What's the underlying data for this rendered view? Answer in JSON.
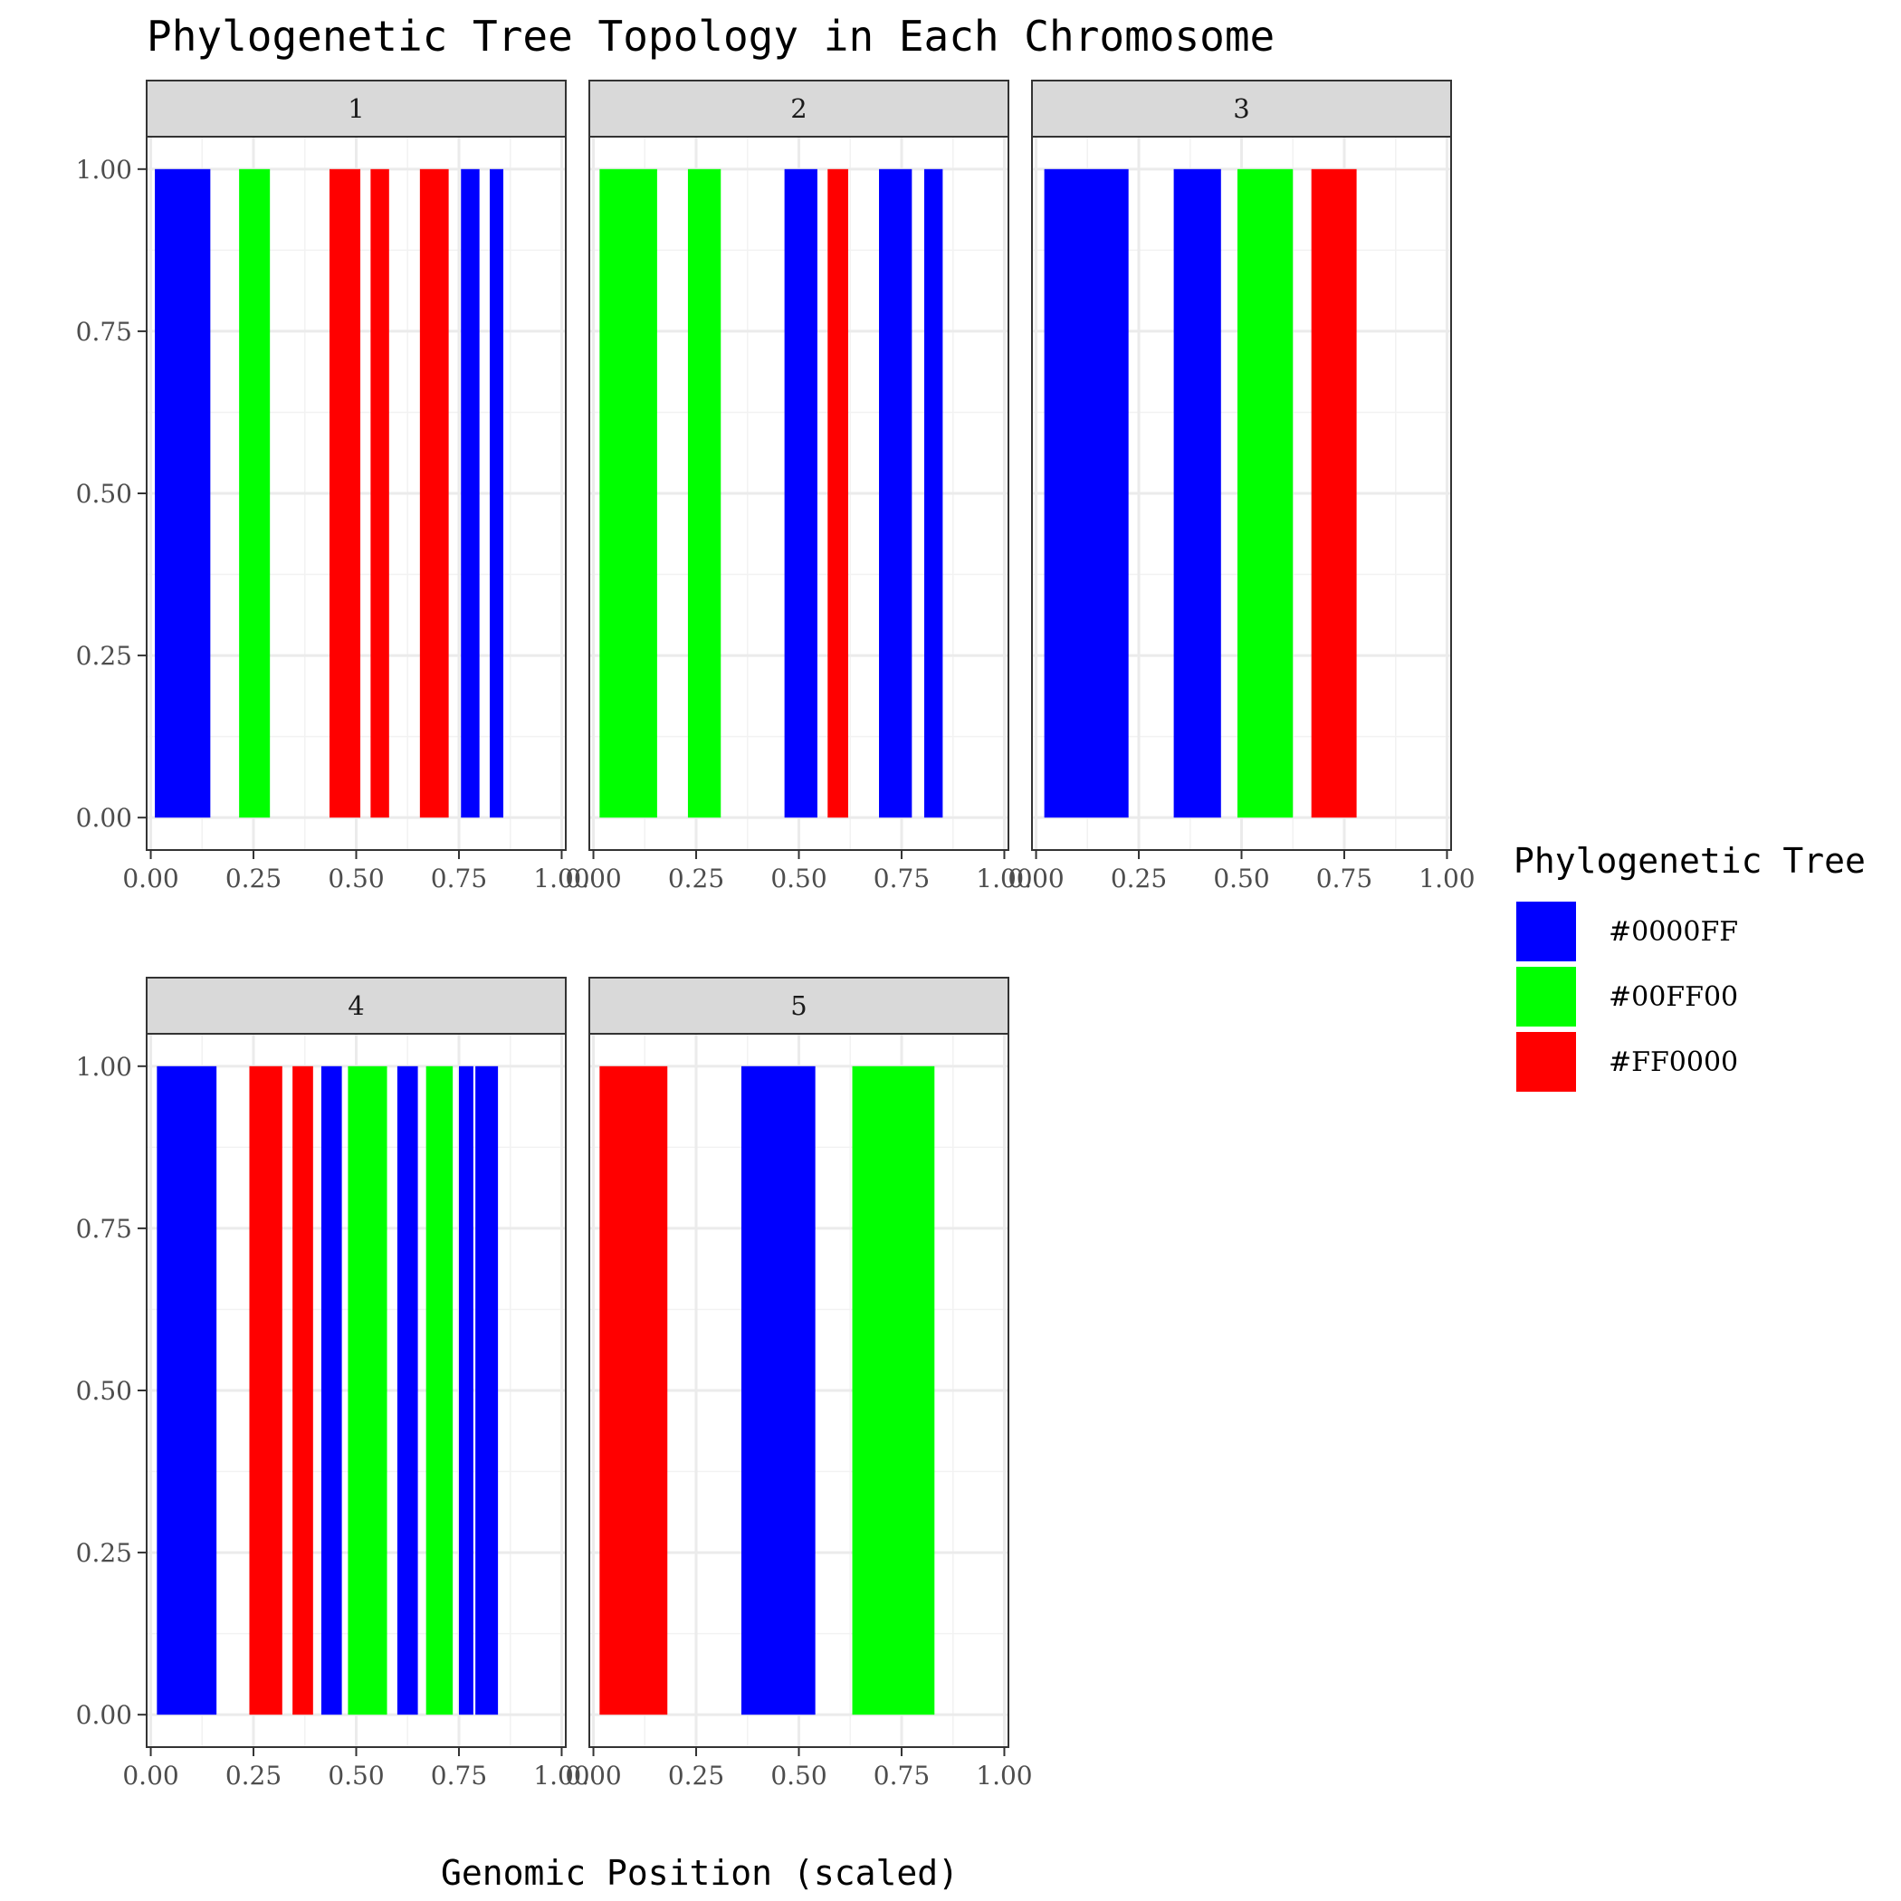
{
  "chart_data": {
    "type": "bar",
    "title": "Phylogenetic Tree Topology in Each Chromosome",
    "xlabel": "Genomic Position (scaled)",
    "ylabel": "",
    "xlim": [
      0,
      1
    ],
    "ylim": [
      0,
      1
    ],
    "x_ticks": [
      "0.00",
      "0.25",
      "0.50",
      "0.75",
      "1.00"
    ],
    "y_ticks": [
      "0.00",
      "0.25",
      "0.50",
      "0.75",
      "1.00"
    ],
    "grid": true,
    "legend": {
      "title": "Phylogenetic Tree",
      "position": "right",
      "entries": [
        {
          "label": "#0000FF",
          "color": "#0000FF"
        },
        {
          "label": "#00FF00",
          "color": "#00FF00"
        },
        {
          "label": "#FF0000",
          "color": "#FF0000"
        }
      ]
    },
    "panels": [
      {
        "label": "1",
        "segments": [
          {
            "start": 0.01,
            "end": 0.145,
            "height": 1,
            "color": "#0000FF"
          },
          {
            "start": 0.215,
            "end": 0.29,
            "height": 1,
            "color": "#00FF00"
          },
          {
            "start": 0.435,
            "end": 0.51,
            "height": 1,
            "color": "#FF0000"
          },
          {
            "start": 0.535,
            "end": 0.58,
            "height": 1,
            "color": "#FF0000"
          },
          {
            "start": 0.655,
            "end": 0.725,
            "height": 1,
            "color": "#FF0000"
          },
          {
            "start": 0.755,
            "end": 0.8,
            "height": 1,
            "color": "#0000FF"
          },
          {
            "start": 0.825,
            "end": 0.858,
            "height": 1,
            "color": "#0000FF"
          }
        ]
      },
      {
        "label": "2",
        "segments": [
          {
            "start": 0.015,
            "end": 0.155,
            "height": 1,
            "color": "#00FF00"
          },
          {
            "start": 0.23,
            "end": 0.31,
            "height": 1,
            "color": "#00FF00"
          },
          {
            "start": 0.465,
            "end": 0.545,
            "height": 1,
            "color": "#0000FF"
          },
          {
            "start": 0.57,
            "end": 0.62,
            "height": 1,
            "color": "#FF0000"
          },
          {
            "start": 0.695,
            "end": 0.775,
            "height": 1,
            "color": "#0000FF"
          },
          {
            "start": 0.805,
            "end": 0.85,
            "height": 1,
            "color": "#0000FF"
          }
        ]
      },
      {
        "label": "3",
        "segments": [
          {
            "start": 0.02,
            "end": 0.225,
            "height": 1,
            "color": "#0000FF"
          },
          {
            "start": 0.335,
            "end": 0.45,
            "height": 1,
            "color": "#0000FF"
          },
          {
            "start": 0.49,
            "end": 0.625,
            "height": 1,
            "color": "#00FF00"
          },
          {
            "start": 0.67,
            "end": 0.78,
            "height": 1,
            "color": "#FF0000"
          }
        ]
      },
      {
        "label": "4",
        "segments": [
          {
            "start": 0.015,
            "end": 0.16,
            "height": 1,
            "color": "#0000FF"
          },
          {
            "start": 0.24,
            "end": 0.32,
            "height": 1,
            "color": "#FF0000"
          },
          {
            "start": 0.345,
            "end": 0.395,
            "height": 1,
            "color": "#FF0000"
          },
          {
            "start": 0.415,
            "end": 0.465,
            "height": 1,
            "color": "#0000FF"
          },
          {
            "start": 0.48,
            "end": 0.575,
            "height": 1,
            "color": "#00FF00"
          },
          {
            "start": 0.6,
            "end": 0.65,
            "height": 1,
            "color": "#0000FF"
          },
          {
            "start": 0.67,
            "end": 0.735,
            "height": 1,
            "color": "#00FF00"
          },
          {
            "start": 0.75,
            "end": 0.785,
            "height": 1,
            "color": "#0000FF"
          },
          {
            "start": 0.79,
            "end": 0.845,
            "height": 1,
            "color": "#0000FF"
          }
        ]
      },
      {
        "label": "5",
        "segments": [
          {
            "start": 0.015,
            "end": 0.18,
            "height": 1,
            "color": "#FF0000"
          },
          {
            "start": 0.36,
            "end": 0.54,
            "height": 1,
            "color": "#0000FF"
          },
          {
            "start": 0.63,
            "end": 0.83,
            "height": 1,
            "color": "#00FF00"
          }
        ]
      }
    ]
  }
}
